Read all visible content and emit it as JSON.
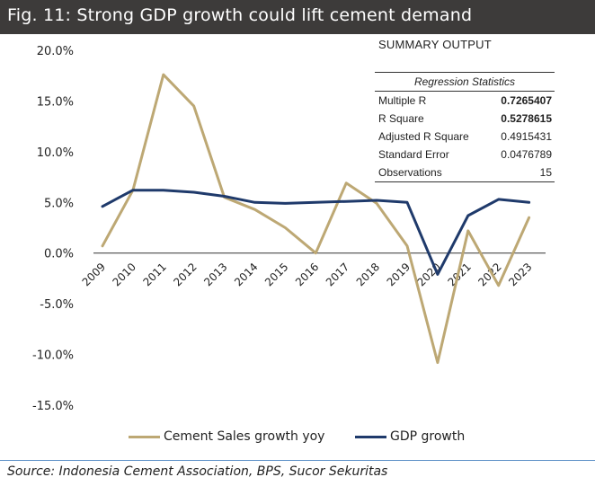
{
  "title": "Fig. 11: Strong GDP growth could lift cement demand",
  "source": "Source: Indonesia Cement Association, BPS, Sucor Sekuritas",
  "summary_title": "SUMMARY OUTPUT",
  "regression": {
    "header": "Regression Statistics",
    "rows": [
      {
        "label": "Multiple R",
        "value": "0.7265407",
        "bold": true
      },
      {
        "label": "R Square",
        "value": "0.5278615",
        "bold": true
      },
      {
        "label": "Adjusted R Square",
        "value": "0.4915431",
        "bold": false
      },
      {
        "label": "Standard Error",
        "value": "0.0476789",
        "bold": false
      },
      {
        "label": "Observations",
        "value": "15",
        "bold": false
      }
    ]
  },
  "colors": {
    "cement": "#bda874",
    "gdp": "#1f3a6b",
    "title_bg": "#3d3b3a",
    "rule": "#5b8fc7"
  },
  "chart_data": {
    "type": "line",
    "categories": [
      "2009",
      "2010",
      "2011",
      "2012",
      "2013",
      "2014",
      "2015",
      "2016",
      "2017",
      "2018",
      "2019",
      "2020",
      "2021",
      "2022",
      "2023"
    ],
    "series": [
      {
        "name": "Cement Sales growth yoy",
        "values": [
          0.7,
          6.2,
          17.6,
          14.5,
          5.5,
          4.3,
          2.5,
          0.0,
          6.9,
          4.9,
          0.7,
          -10.8,
          2.2,
          -3.2,
          3.5
        ]
      },
      {
        "name": "GDP growth",
        "values": [
          4.6,
          6.2,
          6.2,
          6.0,
          5.6,
          5.0,
          4.9,
          5.0,
          5.1,
          5.2,
          5.0,
          -2.1,
          3.7,
          5.3,
          5.0
        ]
      }
    ],
    "yticks": [
      "20.0%",
      "15.0%",
      "10.0%",
      "5.0%",
      "0.0%",
      "-5.0%",
      "-10.0%",
      "-15.0%"
    ],
    "ylim": [
      -15,
      20
    ],
    "grid": false,
    "legend": "bottom"
  }
}
